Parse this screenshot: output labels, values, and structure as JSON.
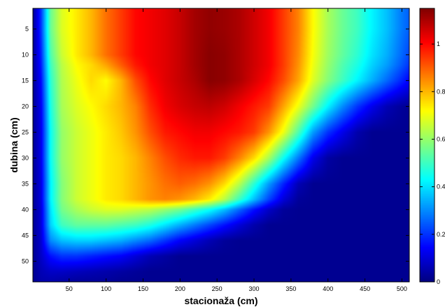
{
  "chart_data": {
    "type": "heatmap",
    "xlabel": "stacionaža (cm)",
    "ylabel": "dubina (cm)",
    "xlim": [
      1,
      510
    ],
    "ylim": [
      54,
      1
    ],
    "x_ticks": [
      "50",
      "100",
      "150",
      "200",
      "250",
      "300",
      "350",
      "400",
      "450",
      "500"
    ],
    "y_ticks": [
      "5",
      "10",
      "15",
      "20",
      "25",
      "30",
      "35",
      "40",
      "45",
      "50"
    ],
    "colorbar": {
      "range": [
        0,
        1.15
      ],
      "ticks": [
        "0",
        "0.2",
        "0.4",
        "0.6",
        "0.8",
        "1"
      ],
      "colormap": "jet"
    },
    "x": [
      1,
      12,
      25,
      40,
      60,
      80,
      100,
      120,
      140,
      160,
      180,
      200,
      220,
      240,
      260,
      280,
      300,
      320,
      340,
      360,
      380,
      400,
      420,
      440,
      460,
      480,
      500,
      510
    ],
    "y": [
      1,
      5,
      10,
      12,
      15,
      20,
      25,
      30,
      35,
      38,
      40,
      43,
      46,
      49,
      52,
      54
    ],
    "z": [
      [
        0.02,
        0.2,
        0.55,
        0.68,
        0.74,
        0.8,
        0.88,
        0.94,
        1.0,
        1.02,
        1.04,
        1.07,
        1.11,
        1.13,
        1.12,
        1.1,
        1.06,
        1.02,
        0.94,
        0.86,
        0.72,
        0.62,
        0.55,
        0.5,
        0.42,
        0.36,
        0.28,
        0.25
      ],
      [
        0.02,
        0.2,
        0.55,
        0.68,
        0.74,
        0.8,
        0.88,
        0.94,
        1.0,
        1.02,
        1.04,
        1.07,
        1.11,
        1.13,
        1.12,
        1.1,
        1.06,
        1.02,
        0.94,
        0.86,
        0.72,
        0.62,
        0.55,
        0.5,
        0.42,
        0.36,
        0.28,
        0.25
      ],
      [
        0.02,
        0.18,
        0.52,
        0.66,
        0.74,
        0.8,
        0.88,
        0.94,
        1.0,
        1.02,
        1.04,
        1.07,
        1.11,
        1.14,
        1.13,
        1.1,
        1.06,
        1.02,
        0.94,
        0.85,
        0.71,
        0.61,
        0.54,
        0.48,
        0.4,
        0.34,
        0.26,
        0.22
      ],
      [
        0.02,
        0.17,
        0.5,
        0.64,
        0.72,
        0.76,
        0.82,
        0.9,
        0.98,
        1.02,
        1.04,
        1.07,
        1.11,
        1.14,
        1.13,
        1.1,
        1.06,
        1.02,
        0.94,
        0.84,
        0.7,
        0.6,
        0.52,
        0.46,
        0.38,
        0.32,
        0.24,
        0.2
      ],
      [
        0.02,
        0.15,
        0.48,
        0.63,
        0.7,
        0.76,
        0.72,
        0.8,
        0.92,
        1.0,
        1.04,
        1.07,
        1.1,
        1.14,
        1.13,
        1.1,
        1.05,
        1.0,
        0.92,
        0.82,
        0.68,
        0.58,
        0.5,
        0.42,
        0.34,
        0.26,
        0.18,
        0.14
      ],
      [
        0.02,
        0.13,
        0.46,
        0.62,
        0.68,
        0.72,
        0.76,
        0.8,
        0.86,
        0.96,
        1.02,
        1.05,
        1.07,
        1.08,
        1.06,
        1.02,
        0.98,
        0.94,
        0.82,
        0.7,
        0.56,
        0.42,
        0.3,
        0.2,
        0.12,
        0.06,
        0.03,
        0.02
      ],
      [
        0.02,
        0.12,
        0.44,
        0.6,
        0.66,
        0.7,
        0.74,
        0.78,
        0.84,
        0.92,
        0.98,
        1.0,
        1.02,
        1.02,
        1.0,
        0.98,
        0.94,
        0.84,
        0.7,
        0.52,
        0.32,
        0.2,
        0.12,
        0.05,
        0.02,
        0.02,
        0.02,
        0.02
      ],
      [
        0.02,
        0.12,
        0.44,
        0.6,
        0.66,
        0.7,
        0.74,
        0.76,
        0.8,
        0.86,
        0.92,
        0.96,
        0.98,
        0.98,
        0.94,
        0.86,
        0.76,
        0.62,
        0.44,
        0.28,
        0.12,
        0.04,
        0.02,
        0.02,
        0.02,
        0.02,
        0.02,
        0.02
      ],
      [
        0.02,
        0.11,
        0.42,
        0.58,
        0.66,
        0.7,
        0.74,
        0.76,
        0.8,
        0.84,
        0.88,
        0.9,
        0.88,
        0.84,
        0.76,
        0.64,
        0.48,
        0.32,
        0.18,
        0.06,
        0.02,
        0.02,
        0.02,
        0.02,
        0.02,
        0.02,
        0.02,
        0.02
      ],
      [
        0.02,
        0.11,
        0.42,
        0.58,
        0.66,
        0.7,
        0.74,
        0.76,
        0.8,
        0.84,
        0.86,
        0.84,
        0.8,
        0.74,
        0.64,
        0.5,
        0.36,
        0.22,
        0.1,
        0.03,
        0.02,
        0.02,
        0.02,
        0.02,
        0.02,
        0.02,
        0.02,
        0.02
      ],
      [
        0.02,
        0.1,
        0.4,
        0.56,
        0.62,
        0.66,
        0.68,
        0.68,
        0.66,
        0.64,
        0.6,
        0.56,
        0.5,
        0.44,
        0.36,
        0.26,
        0.16,
        0.08,
        0.03,
        0.02,
        0.02,
        0.02,
        0.02,
        0.02,
        0.02,
        0.02,
        0.02,
        0.02
      ],
      [
        0.02,
        0.1,
        0.38,
        0.5,
        0.54,
        0.54,
        0.54,
        0.52,
        0.5,
        0.46,
        0.4,
        0.34,
        0.28,
        0.22,
        0.16,
        0.1,
        0.05,
        0.02,
        0.02,
        0.02,
        0.02,
        0.02,
        0.02,
        0.02,
        0.02,
        0.02,
        0.02,
        0.02
      ],
      [
        0.02,
        0.09,
        0.3,
        0.36,
        0.38,
        0.38,
        0.36,
        0.34,
        0.3,
        0.26,
        0.2,
        0.14,
        0.1,
        0.06,
        0.03,
        0.02,
        0.02,
        0.02,
        0.02,
        0.02,
        0.02,
        0.02,
        0.02,
        0.02,
        0.02,
        0.02,
        0.02,
        0.02
      ],
      [
        0.02,
        0.08,
        0.16,
        0.2,
        0.2,
        0.18,
        0.16,
        0.14,
        0.1,
        0.06,
        0.04,
        0.02,
        0.02,
        0.02,
        0.02,
        0.02,
        0.02,
        0.02,
        0.02,
        0.02,
        0.02,
        0.02,
        0.02,
        0.02,
        0.02,
        0.02,
        0.02,
        0.02
      ],
      [
        0.02,
        0.06,
        0.08,
        0.08,
        0.07,
        0.06,
        0.05,
        0.04,
        0.03,
        0.02,
        0.02,
        0.02,
        0.02,
        0.02,
        0.02,
        0.02,
        0.02,
        0.02,
        0.02,
        0.02,
        0.02,
        0.02,
        0.02,
        0.02,
        0.02,
        0.02,
        0.02,
        0.02
      ],
      [
        0.02,
        0.05,
        0.05,
        0.04,
        0.03,
        0.03,
        0.03,
        0.02,
        0.02,
        0.02,
        0.02,
        0.02,
        0.02,
        0.02,
        0.02,
        0.02,
        0.02,
        0.02,
        0.02,
        0.02,
        0.02,
        0.02,
        0.02,
        0.02,
        0.02,
        0.02,
        0.02,
        0.02
      ]
    ]
  }
}
